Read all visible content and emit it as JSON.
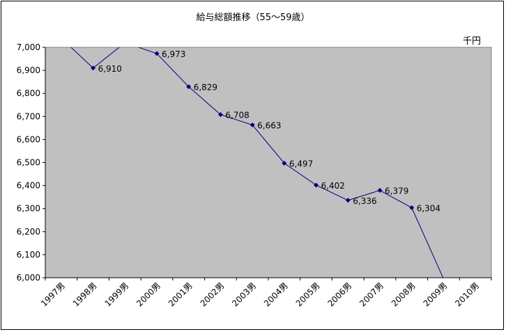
{
  "chart_data": {
    "type": "line",
    "title": "給与総額推移（55～59歳）",
    "unit_label": "千円",
    "categories": [
      "1997男",
      "1998男",
      "1999男",
      "2000男",
      "2001男",
      "2002男",
      "2003男",
      "2004男",
      "2005男",
      "2006男",
      "2007男",
      "2008男",
      "2009男",
      "2010男"
    ],
    "series": [
      {
        "values": [
          7040,
          6910,
          7020,
          6973,
          6829,
          6708,
          6663,
          6497,
          6402,
          6336,
          6379,
          6304,
          5995,
          null
        ],
        "labels": [
          null,
          "6,910",
          null,
          "6,973",
          "6,829",
          "6,708",
          "6,663",
          "6,497",
          "6,402",
          "6,336",
          "6,379",
          "6,304",
          null,
          null
        ],
        "color": "#000080"
      }
    ],
    "ylim": [
      6000,
      7000
    ],
    "yticks": [
      "6,000",
      "6,100",
      "6,200",
      "6,300",
      "6,400",
      "6,500",
      "6,600",
      "6,700",
      "6,800",
      "6,900",
      "7,000"
    ],
    "ytick_values": [
      6000,
      6100,
      6200,
      6300,
      6400,
      6500,
      6600,
      6700,
      6800,
      6900,
      7000
    ],
    "plot_background": "#c0c0c0",
    "grid": false,
    "legend": "none"
  }
}
